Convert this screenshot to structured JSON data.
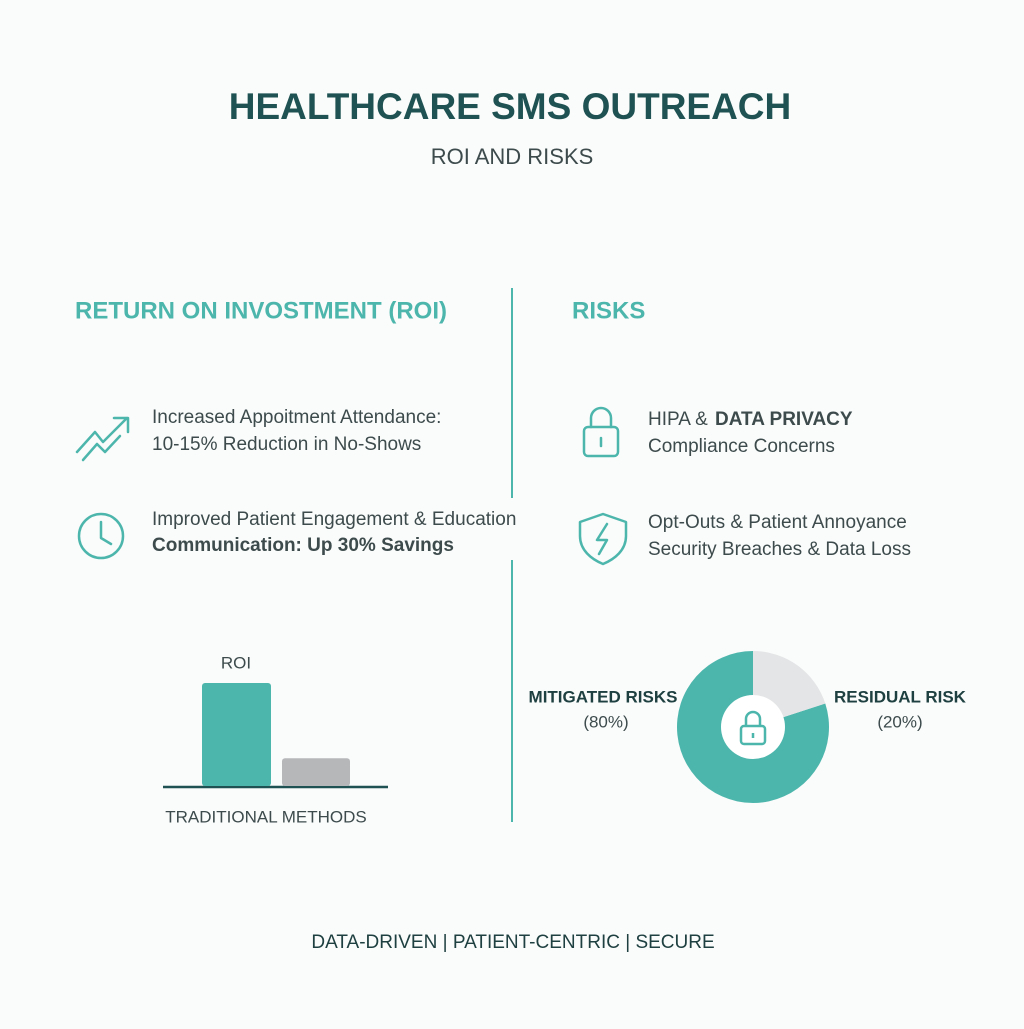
{
  "header": {
    "title": "HEALTHCARE SMS OUTREACH",
    "subtitle": "ROI AND RISKS"
  },
  "roi": {
    "heading": "RETURN ON INVOSTMENT (ROI)",
    "items": [
      {
        "lines": [
          "Increased Appoitment Attendance:",
          "10-15% Reduction in No-Shows"
        ]
      },
      {
        "lines": [
          "Improved Patient Engagement & Education",
          "Communication: Up 30% Savings"
        ]
      }
    ],
    "chart": {
      "type": "bar",
      "categories": [
        "ROI",
        "TRADITIONAL METHODS"
      ],
      "values": [
        100,
        27
      ],
      "colors": [
        "#4db6ac",
        "#b5b7b9"
      ]
    }
  },
  "risks": {
    "heading": "RISKS",
    "items": [
      {
        "lines": [
          "HIPA &",
          "DATA PRIVACY",
          "Compliance Concerns"
        ]
      },
      {
        "lines": [
          "Opt-Outs & Patient Annoyance",
          "Security Breaches & Data Loss"
        ]
      }
    ],
    "chart": {
      "type": "donut",
      "categories": [
        "MITIGATED RISKS",
        "RESIDUAL RISK"
      ],
      "values": [
        80,
        20
      ],
      "value_labels": [
        "(80%)",
        "(20%)"
      ],
      "colors": [
        "#4db6ac",
        "#e4e5e6"
      ]
    }
  },
  "footer": "DATA-DRIVEN | PATIENT-CENTRIC | SECURE"
}
